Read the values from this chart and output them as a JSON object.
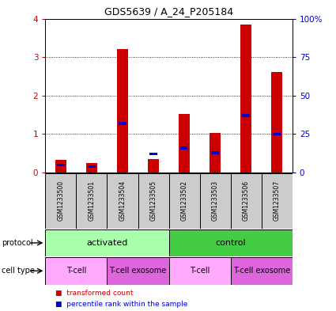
{
  "title": "GDS5639 / A_24_P205184",
  "samples": [
    "GSM1233500",
    "GSM1233501",
    "GSM1233504",
    "GSM1233505",
    "GSM1233502",
    "GSM1233503",
    "GSM1233506",
    "GSM1233507"
  ],
  "transformed_counts": [
    0.33,
    0.25,
    3.22,
    0.35,
    1.52,
    1.03,
    3.85,
    2.62
  ],
  "percentile_pcts": [
    5,
    4,
    32,
    12,
    16,
    13,
    37,
    25
  ],
  "ylim_left": [
    0,
    4
  ],
  "ylim_right": [
    0,
    100
  ],
  "yticks_left": [
    0,
    1,
    2,
    3,
    4
  ],
  "yticks_right": [
    0,
    25,
    50,
    75,
    100
  ],
  "yticklabels_right": [
    "0",
    "25",
    "50",
    "75",
    "100%"
  ],
  "bar_color": "#cc0000",
  "percentile_color": "#0000cc",
  "protocol_groups": [
    {
      "label": "activated",
      "start": 0,
      "end": 4,
      "color": "#aaffaa"
    },
    {
      "label": "control",
      "start": 4,
      "end": 8,
      "color": "#44cc44"
    }
  ],
  "cell_type_groups": [
    {
      "label": "T-cell",
      "start": 0,
      "end": 2,
      "color": "#ffaaff"
    },
    {
      "label": "T-cell exosome",
      "start": 2,
      "end": 4,
      "color": "#dd66dd"
    },
    {
      "label": "T-cell",
      "start": 4,
      "end": 6,
      "color": "#ffaaff"
    },
    {
      "label": "T-cell exosome",
      "start": 6,
      "end": 8,
      "color": "#dd66dd"
    }
  ],
  "bg_color": "#ffffff",
  "bar_width": 0.35,
  "left_ylabel_color": "#cc0000",
  "right_ylabel_color": "#0000cc",
  "sample_box_color": "#cccccc",
  "title_fontsize": 9,
  "tick_fontsize": 7.5,
  "sample_fontsize": 5.5,
  "prot_fontsize": 8,
  "cell_fontsize": 7
}
